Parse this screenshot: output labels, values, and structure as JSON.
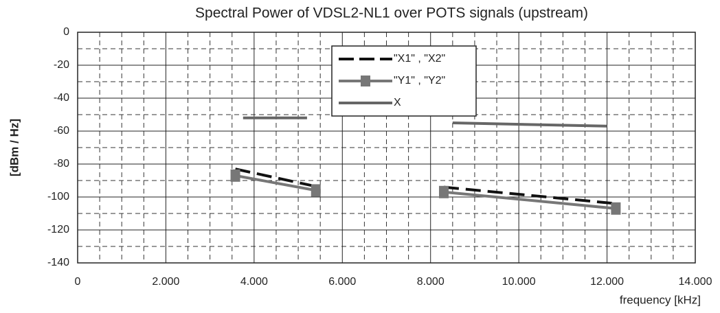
{
  "chart_data": {
    "type": "line",
    "title": "Spectral Power of VDSL2-NL1 over POTS signals (upstream)",
    "ylabel": "[dBm / Hz]",
    "xlabel": "frequency [kHz]",
    "xlim": [
      0,
      14000
    ],
    "xticks": [
      0,
      {
        "value": 2000,
        "label": "2.000"
      },
      {
        "value": 4000,
        "label": "4.000"
      },
      {
        "value": 6000,
        "label": "6.000"
      },
      {
        "value": 8000,
        "label": "8.000"
      },
      {
        "value": 10000,
        "label": "10.000"
      },
      {
        "value": 12000,
        "label": "12.000"
      },
      {
        "value": 14000,
        "label": "14.000"
      }
    ],
    "ylim": [
      -140,
      0
    ],
    "yticks": [
      0,
      -20,
      -40,
      -60,
      -80,
      -100,
      -120,
      -140
    ],
    "xminor": [
      500,
      1000,
      1500,
      2500,
      3000,
      3500,
      4500,
      5000,
      5500,
      6500,
      7000,
      7500,
      8500,
      9000,
      9500,
      10500,
      11000,
      11500,
      12500,
      13000,
      13500
    ],
    "yminor": [
      -10,
      -30,
      -50,
      -70,
      -90,
      -110,
      -130
    ],
    "grid": true,
    "legend": "top-center",
    "series": [
      {
        "name": "\"X1\" , \"X2\"",
        "color": "#111111",
        "dash": true,
        "marker": "none",
        "x": [
          3575,
          5300,
          null,
          8300,
          12200
        ],
        "values": [
          -83,
          -93,
          null,
          -94,
          -104
        ]
      },
      {
        "name": "\"Y1\" , \"Y2\"",
        "color": "#777777",
        "dash": false,
        "marker": "square",
        "x": [
          3575,
          5400,
          null,
          8300,
          12200
        ],
        "values": [
          -87,
          -96,
          null,
          -97,
          -107
        ]
      },
      {
        "name": "X",
        "color": "#666666",
        "dash": false,
        "marker": "none",
        "x": [
          3750,
          5200,
          null,
          8500,
          12000
        ],
        "values": [
          -52,
          -52,
          null,
          -55,
          -57
        ]
      }
    ]
  }
}
